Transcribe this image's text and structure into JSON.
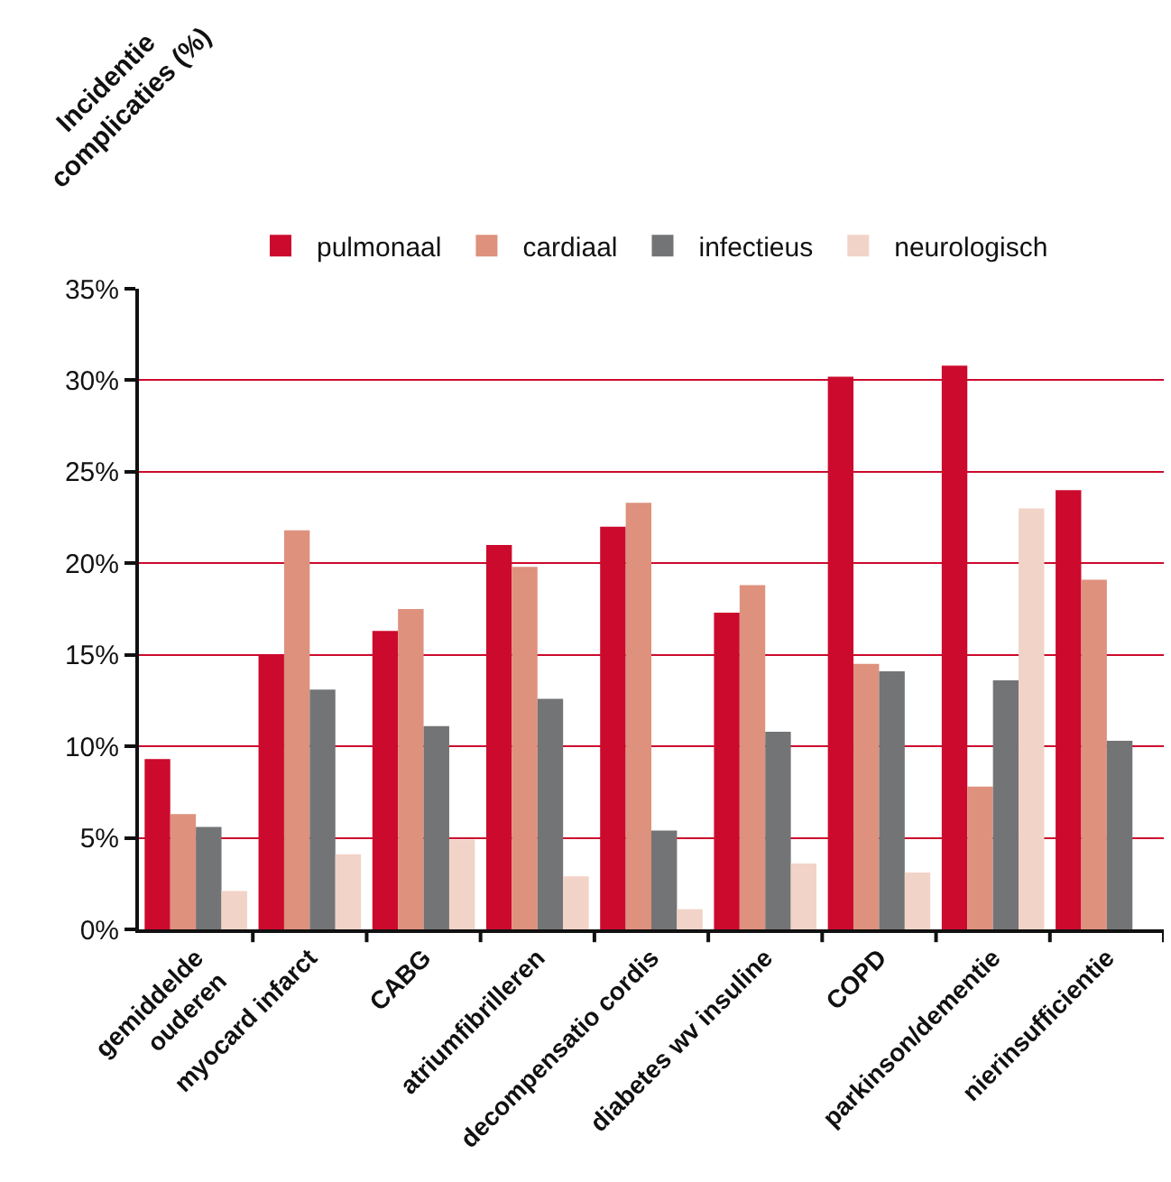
{
  "chart_data": {
    "type": "bar",
    "ylabel": "Incidentie\ncomplicaties (%)",
    "categories": [
      "gemiddelde\nouderen",
      "myocard infarct",
      "CABG",
      "atriumfibrilleren",
      "decompensatio cordis",
      "diabetes wv insuline",
      "COPD",
      "parkinson/dementie",
      "nierinsufficientie"
    ],
    "series": [
      {
        "name": "pulmonaal",
        "color": "#cc0a2d",
        "values": [
          9.3,
          15.0,
          16.3,
          21.0,
          22.0,
          17.3,
          30.2,
          30.8,
          24.0
        ]
      },
      {
        "name": "cardiaal",
        "color": "#de917d",
        "values": [
          6.3,
          21.8,
          17.5,
          19.8,
          23.3,
          18.8,
          14.5,
          7.8,
          19.1
        ]
      },
      {
        "name": "infectieus",
        "color": "#737476",
        "values": [
          5.6,
          13.1,
          11.1,
          12.6,
          5.4,
          10.8,
          14.1,
          13.6,
          10.3
        ]
      },
      {
        "name": "neurologisch",
        "color": "#f2d3c8",
        "values": [
          2.1,
          4.1,
          4.9,
          2.9,
          1.1,
          3.6,
          3.1,
          23.0,
          null
        ]
      }
    ],
    "ylim": [
      0,
      35
    ],
    "yticks": [
      {
        "value": 0,
        "label": "0%"
      },
      {
        "value": 5,
        "label": "5%"
      },
      {
        "value": 10,
        "label": "10%"
      },
      {
        "value": 15,
        "label": "15%"
      },
      {
        "value": 20,
        "label": "20%"
      },
      {
        "value": 25,
        "label": "25%"
      },
      {
        "value": 30,
        "label": "30%"
      },
      {
        "value": 35,
        "label": "35%"
      }
    ],
    "grid": "y",
    "legend": "top"
  }
}
